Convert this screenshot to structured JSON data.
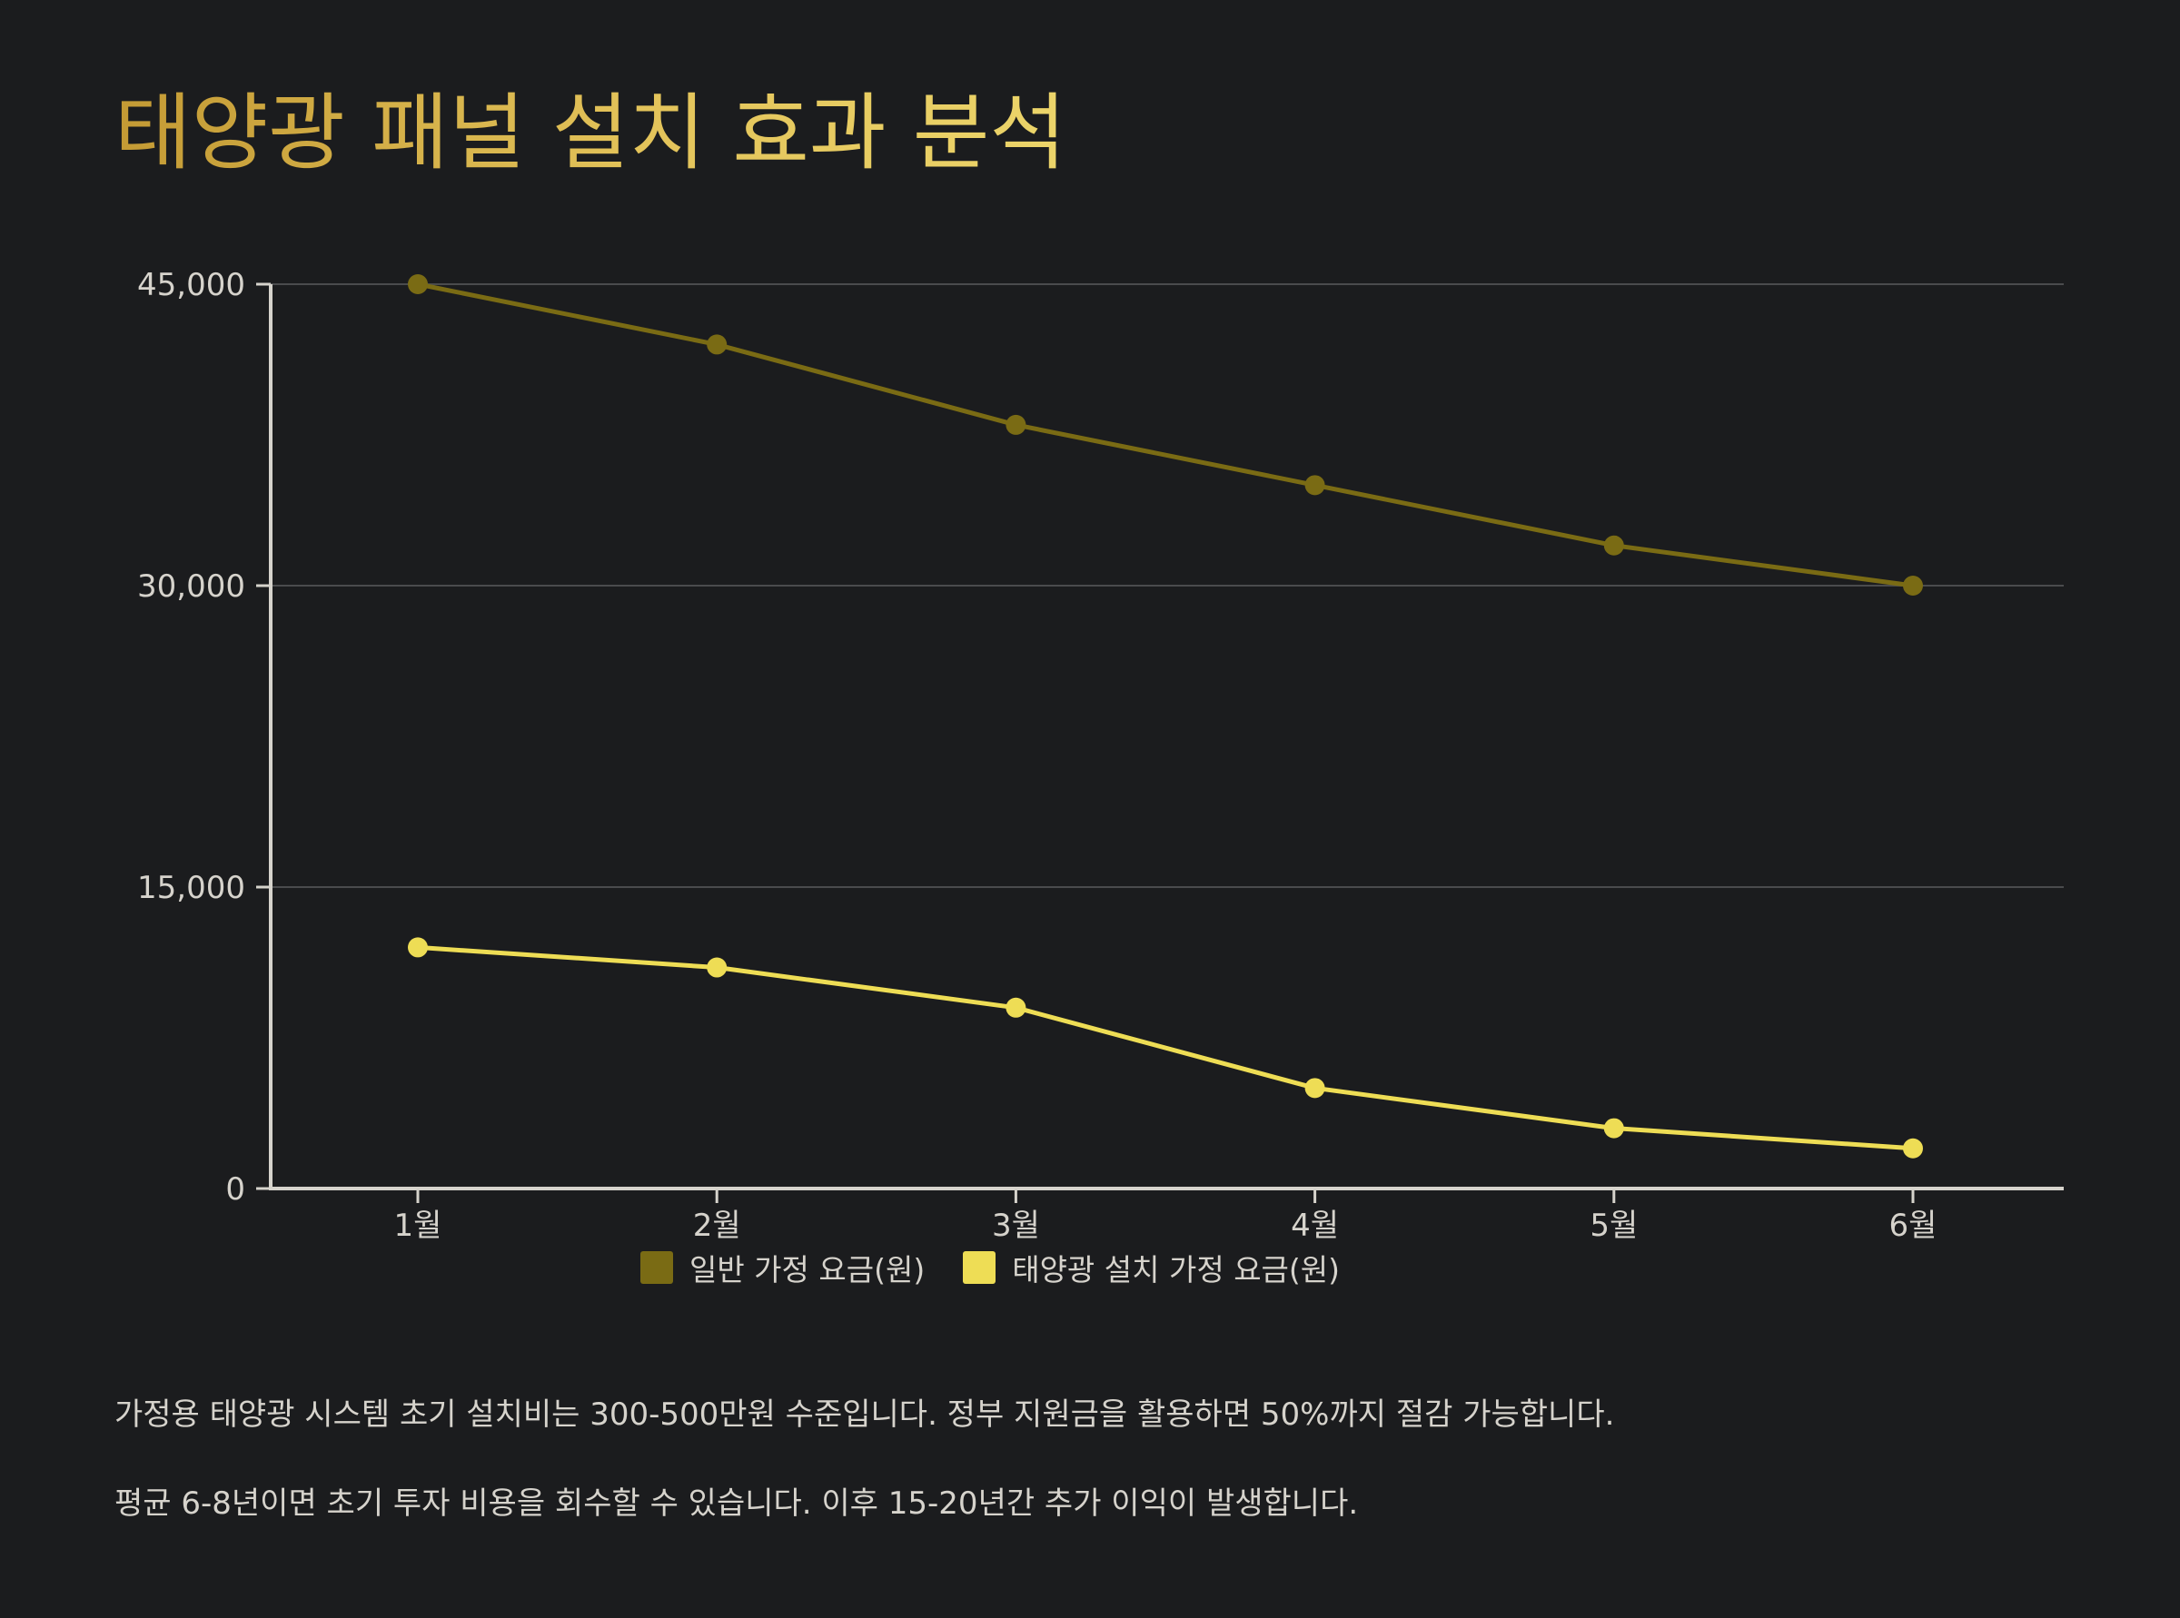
{
  "title": "태양광 패널 설치 효과 분석",
  "chart_data": {
    "type": "line",
    "title": "태양광 패널 설치 효과 분석",
    "categories": [
      "1월",
      "2월",
      "3월",
      "4월",
      "5월",
      "6월"
    ],
    "series": [
      {
        "name": "일반 가정 요금(원)",
        "color": "#7a6b14",
        "values": [
          45000,
          42000,
          38000,
          35000,
          32000,
          30000
        ]
      },
      {
        "name": "태양광 설치 가정 요금(원)",
        "color": "#eedd55",
        "values": [
          12000,
          11000,
          9000,
          5000,
          3000,
          2000
        ]
      }
    ],
    "ylim": [
      0,
      45000
    ],
    "yticks": [
      0,
      15000,
      30000,
      45000
    ],
    "ytick_labels": [
      "0",
      "15,000",
      "30,000",
      "45,000"
    ],
    "grid": true,
    "legend": "bottom-center",
    "xlabel": "",
    "ylabel": ""
  },
  "notes": [
    "가정용 태양광 시스템 초기 설치비는 300-500만원 수준입니다. 정부 지원금을 활용하면 50%까지 절감 가능합니다.",
    "평균 6-8년이면 초기 투자 비용을 회수할 수 있습니다. 이후 15-20년간 추가 이익이 발생합니다."
  ]
}
